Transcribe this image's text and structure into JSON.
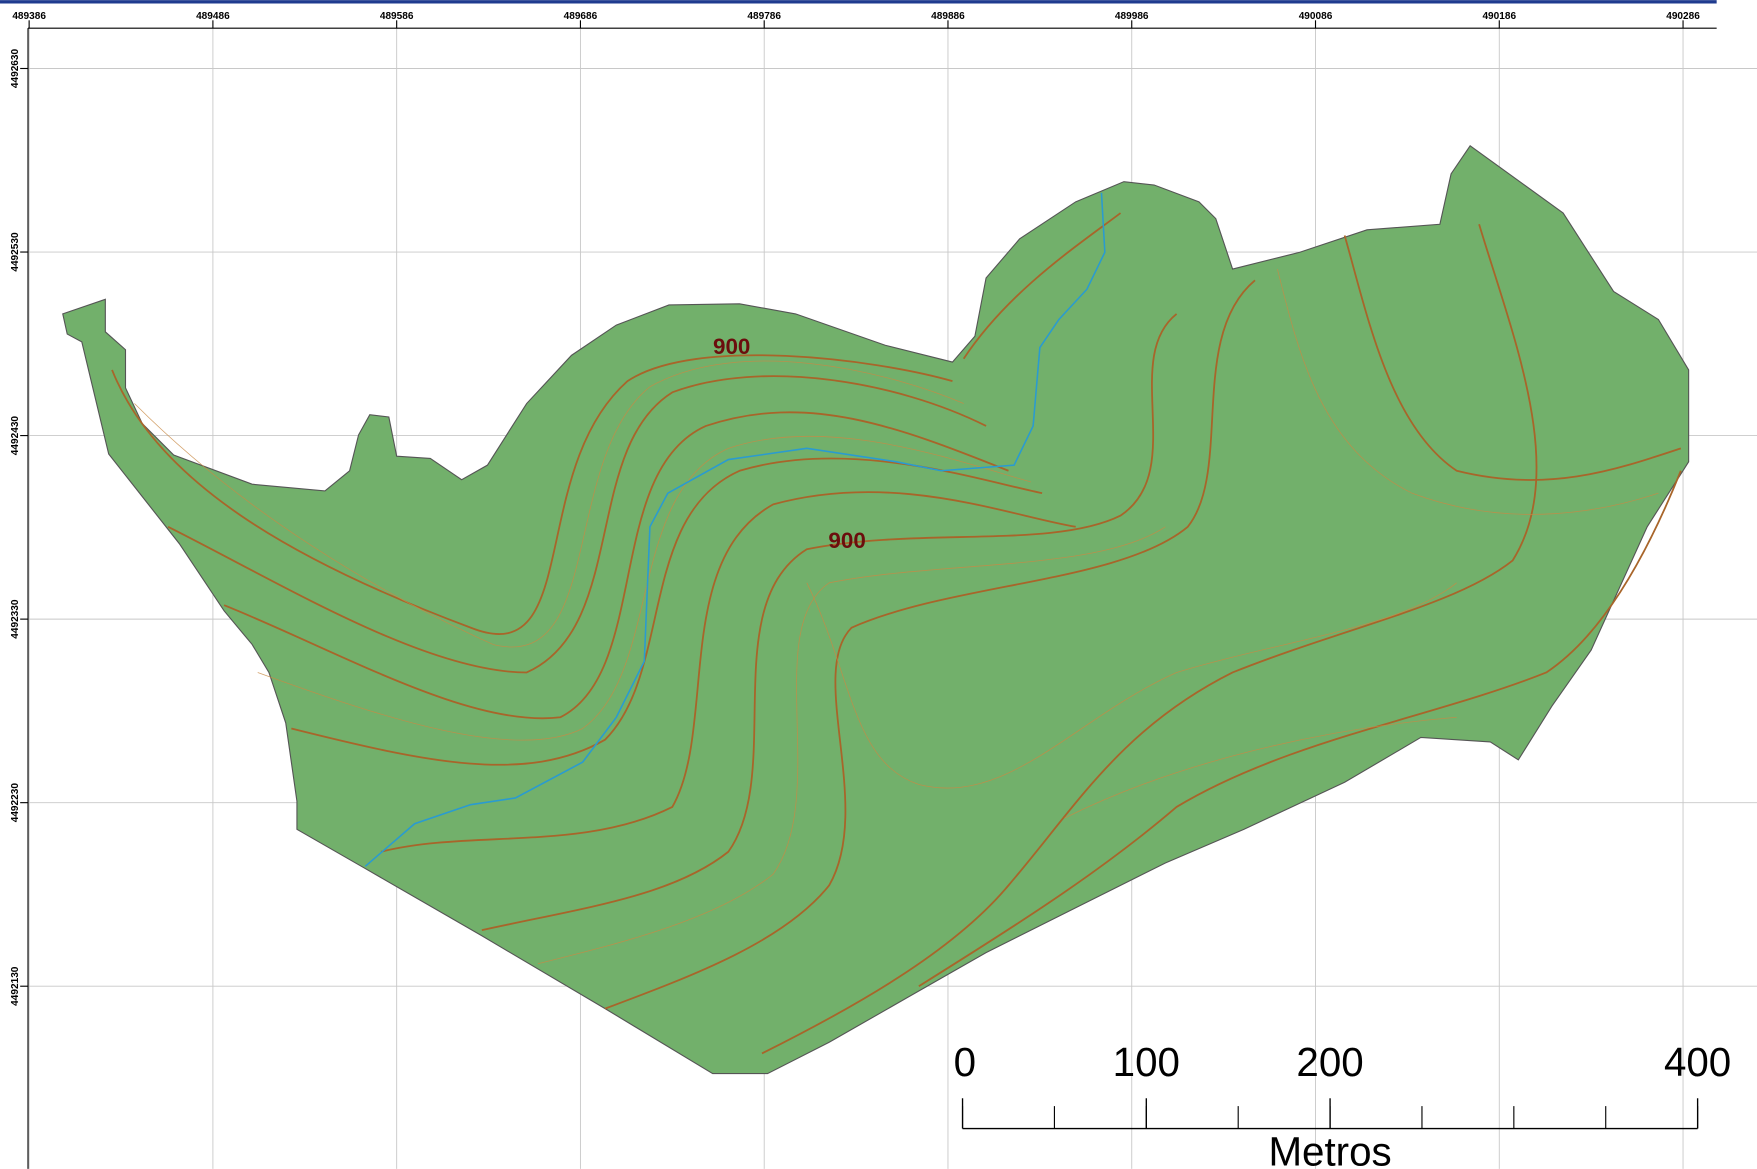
{
  "xticks": [
    489386,
    489486,
    489586,
    489686,
    489786,
    489886,
    489986,
    490086,
    490186,
    490286
  ],
  "yticks": [
    4492630,
    4492530,
    4492430,
    4492330,
    4492230,
    4492130
  ],
  "contour_labels": [
    "900",
    "900"
  ],
  "scale_bar": {
    "ticks": [
      0,
      100,
      200,
      400
    ],
    "unit": "Metros"
  }
}
